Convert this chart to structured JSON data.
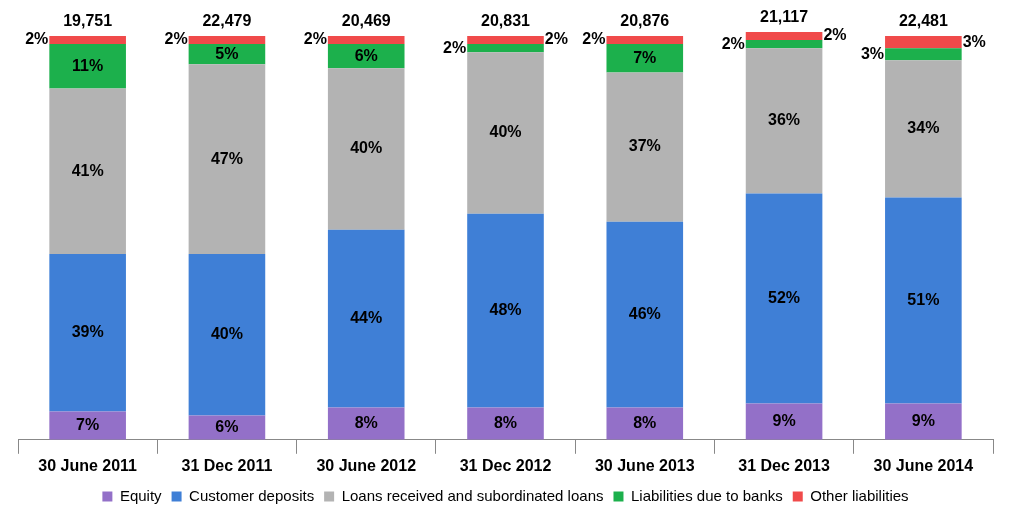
{
  "chart_data": {
    "type": "bar",
    "stacked": true,
    "legend": "bottom",
    "categories": [
      "30 June 2011",
      "31 Dec 2011",
      "30 June 2012",
      "31 Dec 2012",
      "30 June 2013",
      "31 Dec 2013",
      "30 June 2014"
    ],
    "series": [
      {
        "name": "Equity",
        "color": "#9370c8",
        "values": [
          7,
          6,
          8,
          8,
          8,
          9,
          9
        ],
        "value_labels": [
          "7%",
          "6%",
          "8%",
          "8%",
          "8%",
          "9%",
          "9%"
        ]
      },
      {
        "name": "Customer deposits",
        "color": "#3f7fd6",
        "values": [
          39,
          40,
          44,
          48,
          46,
          52,
          51
        ],
        "value_labels": [
          "39%",
          "40%",
          "44%",
          "48%",
          "46%",
          "52%",
          "51%"
        ]
      },
      {
        "name": "Loans received and subordinated loans",
        "color": "#b3b3b3",
        "values": [
          41,
          47,
          40,
          40,
          37,
          36,
          34
        ],
        "value_labels": [
          "41%",
          "47%",
          "40%",
          "40%",
          "37%",
          "36%",
          "34%"
        ]
      },
      {
        "name": "Liabilities due to banks",
        "color": "#1cb04c",
        "values": [
          11,
          5,
          6,
          2,
          7,
          2,
          3
        ],
        "value_labels": [
          "11%",
          "5%",
          "6%",
          "2%",
          "7%",
          "2%",
          "3%"
        ]
      },
      {
        "name": "Other liabilities",
        "color": "#f04a4a",
        "values": [
          2,
          2,
          2,
          2,
          2,
          2,
          3
        ],
        "value_labels": [
          "2%",
          "2%",
          "2%",
          "2%",
          "2%",
          "2%",
          "3%"
        ]
      }
    ],
    "annotations": [
      "19,751",
      "22,479",
      "20,469",
      "20,831",
      "20,876",
      "21,117",
      "22,481"
    ]
  }
}
